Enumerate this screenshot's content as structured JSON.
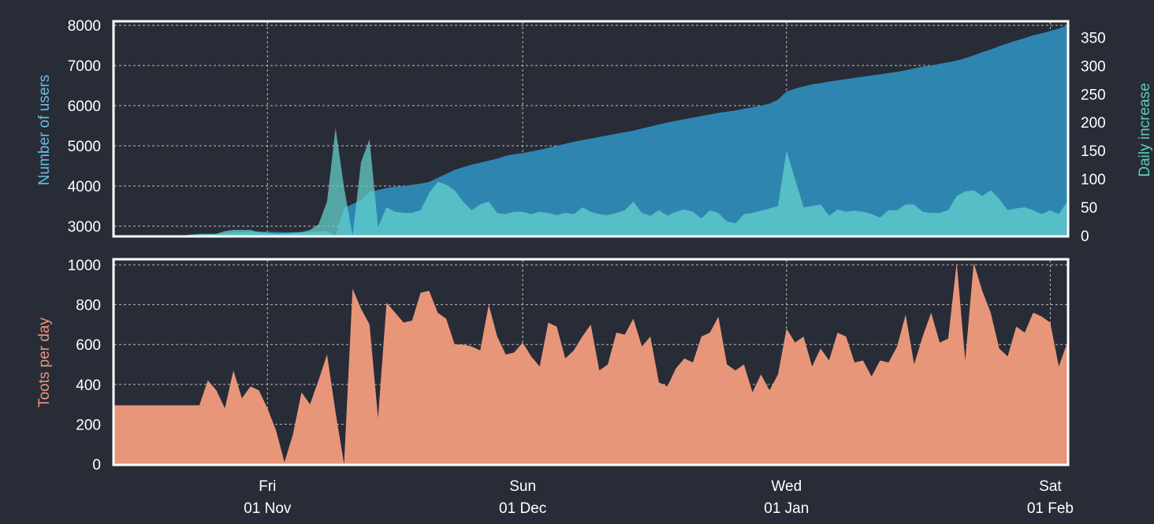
{
  "colors": {
    "background": "#282c37",
    "users": "#2e86b0",
    "daily_increase": "#66d4cf",
    "toots": "#e8967a",
    "users_label": "#67bde6",
    "daily_label": "#5ccdbf",
    "toots_label": "#e8967a",
    "tick_text": "#ffffff",
    "grid": "#bbbbbb",
    "frame": "#ffffff"
  },
  "chart_data": [
    {
      "type": "area",
      "panel": "top",
      "ylabel_left": "Number of users",
      "ylabel_right": "Daily increase",
      "ylim_left": [
        2765,
        8080
      ],
      "ylim_right": [
        0,
        377
      ],
      "yticks_left": [
        "3000",
        "4000",
        "5000",
        "6000",
        "7000",
        "8000"
      ],
      "yticks_right": [
        "0",
        "50",
        "100",
        "150",
        "200",
        "250",
        "300",
        "350"
      ],
      "grid": true,
      "series": [
        {
          "key": "users",
          "axis": "left",
          "values": [
            2760,
            2760,
            2760,
            2760,
            2760,
            2760,
            2760,
            2765,
            2770,
            2780,
            2790,
            2800,
            2810,
            2830,
            2850,
            2860,
            2860,
            2870,
            2860,
            2855,
            2850,
            2850,
            2855,
            2860,
            2870,
            2880,
            2750,
            3450,
            3550,
            3650,
            3850,
            3900,
            3950,
            3980,
            4000,
            4030,
            4060,
            4100,
            4200,
            4300,
            4400,
            4470,
            4530,
            4580,
            4630,
            4680,
            4750,
            4790,
            4820,
            4860,
            4900,
            4950,
            5000,
            5050,
            5100,
            5140,
            5180,
            5220,
            5260,
            5300,
            5340,
            5380,
            5430,
            5480,
            5530,
            5580,
            5620,
            5660,
            5700,
            5740,
            5780,
            5820,
            5850,
            5880,
            5920,
            5960,
            6000,
            6050,
            6150,
            6350,
            6420,
            6480,
            6530,
            6560,
            6600,
            6630,
            6660,
            6690,
            6720,
            6750,
            6780,
            6810,
            6840,
            6880,
            6930,
            6970,
            7000,
            7040,
            7080,
            7120,
            7180,
            7250,
            7330,
            7400,
            7480,
            7550,
            7620,
            7680,
            7750,
            7800,
            7860,
            7920,
            8000
          ]
        },
        {
          "key": "daily_increase",
          "axis": "right",
          "values": [
            0,
            0,
            0,
            0,
            0,
            0,
            0,
            0,
            0,
            2,
            3,
            3,
            3,
            8,
            10,
            10,
            10,
            6,
            5,
            3,
            4,
            5,
            6,
            10,
            20,
            60,
            190,
            85,
            0,
            130,
            170,
            15,
            50,
            42,
            40,
            40,
            45,
            75,
            95,
            90,
            80,
            60,
            45,
            55,
            60,
            40,
            38,
            42,
            42,
            38,
            42,
            40,
            36,
            40,
            38,
            50,
            42,
            38,
            36,
            40,
            45,
            60,
            40,
            35,
            45,
            35,
            42,
            46,
            42,
            30,
            45,
            40,
            25,
            22,
            38,
            40,
            44,
            48,
            52,
            150,
            100,
            50,
            52,
            55,
            35,
            46,
            42,
            44,
            42,
            38,
            32,
            45,
            45,
            55,
            55,
            42,
            40,
            40,
            45,
            70,
            78,
            80,
            70,
            80,
            65,
            45,
            48,
            50,
            45,
            38,
            45,
            38,
            60
          ]
        }
      ]
    },
    {
      "type": "area",
      "panel": "bottom",
      "ylabel": "Toots per day",
      "ylim": [
        0,
        1024
      ],
      "yticks": [
        "0",
        "200",
        "400",
        "600",
        "800",
        "1000"
      ],
      "grid": true,
      "series": [
        {
          "key": "toots",
          "values": [
            295,
            295,
            295,
            295,
            295,
            295,
            295,
            295,
            295,
            295,
            295,
            420,
            370,
            280,
            470,
            330,
            390,
            370,
            280,
            170,
            10,
            150,
            360,
            300,
            420,
            550,
            260,
            0,
            880,
            780,
            700,
            230,
            810,
            760,
            710,
            720,
            860,
            870,
            760,
            730,
            600,
            600,
            590,
            570,
            800,
            640,
            550,
            560,
            610,
            540,
            490,
            710,
            690,
            530,
            570,
            640,
            700,
            470,
            500,
            660,
            650,
            730,
            590,
            640,
            410,
            390,
            480,
            530,
            510,
            640,
            660,
            740,
            500,
            470,
            500,
            360,
            450,
            370,
            450,
            680,
            610,
            640,
            490,
            580,
            520,
            660,
            640,
            510,
            520,
            440,
            520,
            510,
            590,
            750,
            500,
            640,
            760,
            610,
            630,
            1010,
            520,
            1010,
            870,
            760,
            580,
            540,
            690,
            660,
            760,
            740,
            710,
            490,
            610
          ]
        }
      ]
    }
  ],
  "x_axis": {
    "xlim": [
      "2019-10-14",
      "2020-02-03"
    ],
    "ticks": [
      {
        "date": "2019-11-01",
        "day": "Fri",
        "label": "01 Nov"
      },
      {
        "date": "2019-12-01",
        "day": "Sun",
        "label": "01 Dec"
      },
      {
        "date": "2020-01-01",
        "day": "Wed",
        "label": "01 Jan"
      },
      {
        "date": "2020-02-01",
        "day": "Sat",
        "label": "01 Feb"
      }
    ]
  }
}
